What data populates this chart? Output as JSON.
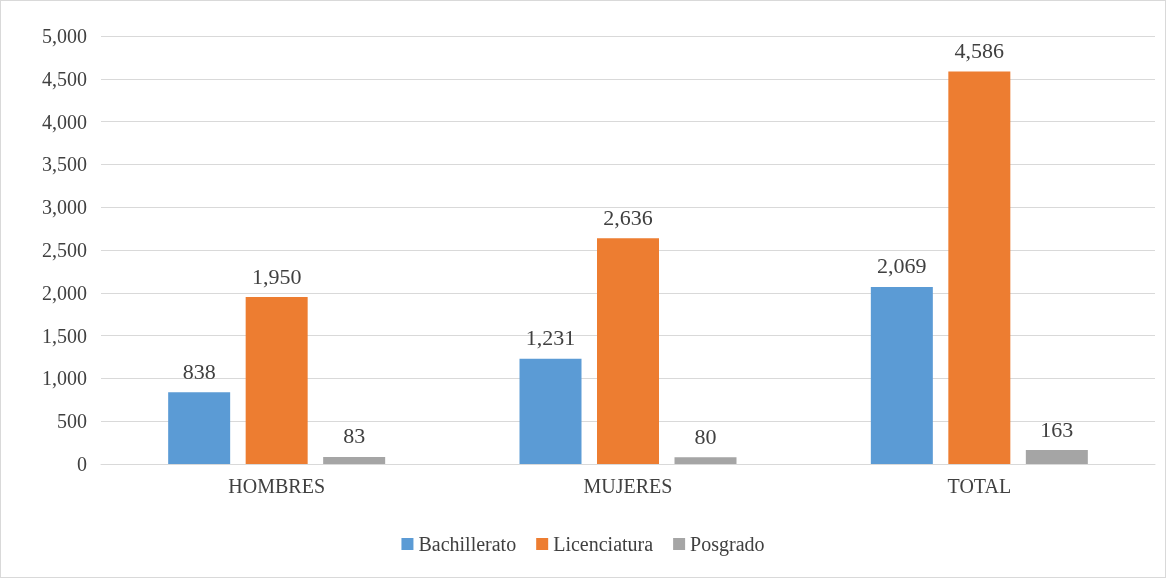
{
  "chart_data": {
    "type": "bar",
    "categories": [
      "HOMBRES",
      "MUJERES",
      "TOTAL"
    ],
    "series": [
      {
        "name": "Bachillerato",
        "color": "#5b9bd5",
        "values": [
          838,
          1231,
          2069
        ],
        "value_labels": [
          "838",
          "1,231",
          "2,069"
        ]
      },
      {
        "name": "Licenciatura",
        "color": "#ed7d31",
        "values": [
          1950,
          2636,
          4586
        ],
        "value_labels": [
          "1,950",
          "2,636",
          "4,586"
        ]
      },
      {
        "name": "Posgrado",
        "color": "#a5a5a5",
        "values": [
          83,
          80,
          163
        ],
        "value_labels": [
          "83",
          "80",
          "163"
        ]
      }
    ],
    "ylim": [
      0,
      5000
    ],
    "yticks": [
      {
        "value": 0,
        "label": "0"
      },
      {
        "value": 500,
        "label": "500"
      },
      {
        "value": 1000,
        "label": "1,000"
      },
      {
        "value": 1500,
        "label": "1,500"
      },
      {
        "value": 2000,
        "label": "2,000"
      },
      {
        "value": 2500,
        "label": "2,500"
      },
      {
        "value": 3000,
        "label": "3,000"
      },
      {
        "value": 3500,
        "label": "3,500"
      },
      {
        "value": 4000,
        "label": "4,000"
      },
      {
        "value": 4500,
        "label": "4,500"
      },
      {
        "value": 5000,
        "label": "5,000"
      }
    ],
    "grid": "y",
    "legend": "bottom"
  }
}
